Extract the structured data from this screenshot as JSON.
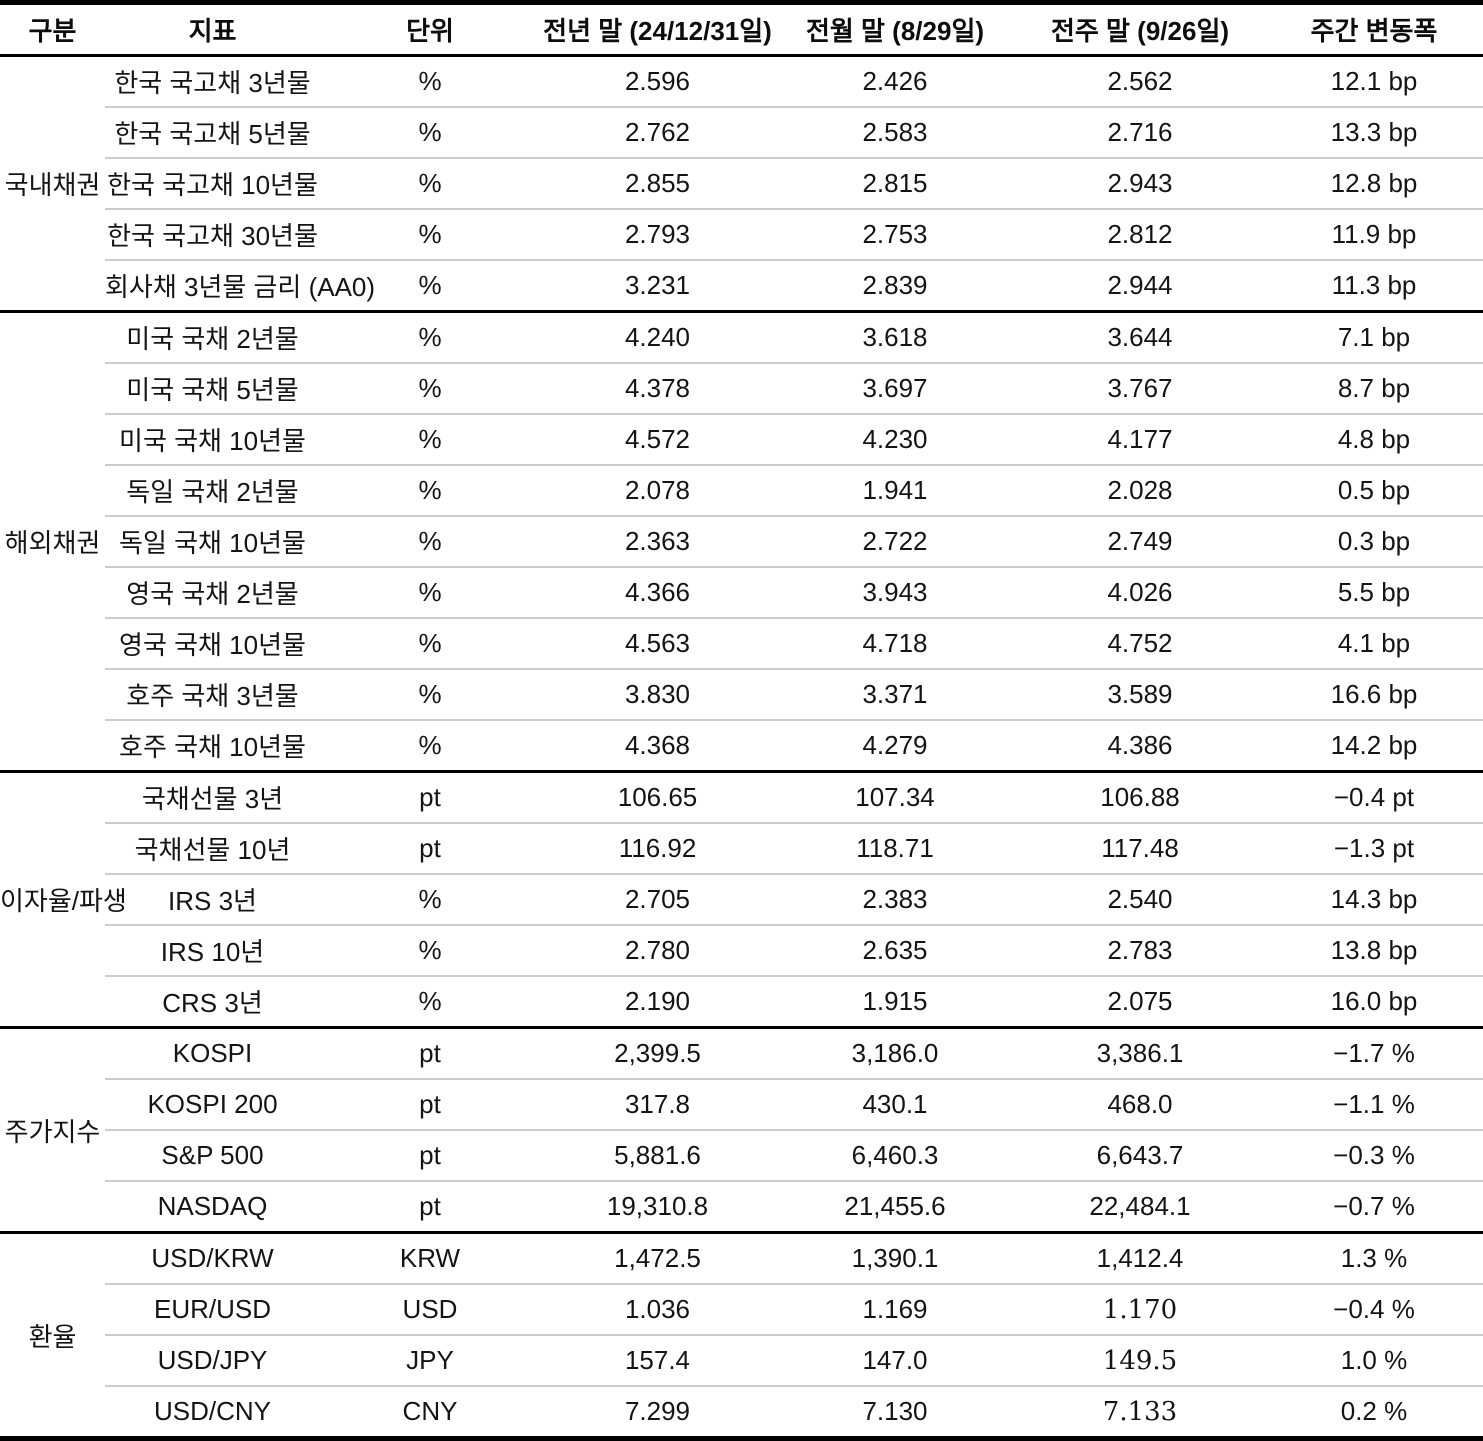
{
  "table": {
    "columns": [
      "구분",
      "지표",
      "단위",
      "전년 말 (24/12/31일)",
      "전월 말 (8/29일)",
      "전주 말 (9/26일)",
      "주간 변동폭"
    ],
    "sections": [
      {
        "category": "국내채권",
        "rows": [
          {
            "indicator": "한국 국고채 3년물",
            "unit": "%",
            "prev_year": "2.596",
            "prev_month": "2.426",
            "prev_week": "2.562",
            "weekly_change": "12.1 bp"
          },
          {
            "indicator": "한국 국고채 5년물",
            "unit": "%",
            "prev_year": "2.762",
            "prev_month": "2.583",
            "prev_week": "2.716",
            "weekly_change": "13.3 bp"
          },
          {
            "indicator": "한국 국고채 10년물",
            "unit": "%",
            "prev_year": "2.855",
            "prev_month": "2.815",
            "prev_week": "2.943",
            "weekly_change": "12.8 bp"
          },
          {
            "indicator": "한국 국고채 30년물",
            "unit": "%",
            "prev_year": "2.793",
            "prev_month": "2.753",
            "prev_week": "2.812",
            "weekly_change": "11.9 bp"
          },
          {
            "indicator": "회사채 3년물 금리 (AA0)",
            "unit": "%",
            "prev_year": "3.231",
            "prev_month": "2.839",
            "prev_week": "2.944",
            "weekly_change": "11.3 bp"
          }
        ]
      },
      {
        "category": "해외채권",
        "rows": [
          {
            "indicator": "미국 국채 2년물",
            "unit": "%",
            "prev_year": "4.240",
            "prev_month": "3.618",
            "prev_week": "3.644",
            "weekly_change": "7.1 bp"
          },
          {
            "indicator": "미국 국채 5년물",
            "unit": "%",
            "prev_year": "4.378",
            "prev_month": "3.697",
            "prev_week": "3.767",
            "weekly_change": "8.7 bp"
          },
          {
            "indicator": "미국 국채 10년물",
            "unit": "%",
            "prev_year": "4.572",
            "prev_month": "4.230",
            "prev_week": "4.177",
            "weekly_change": "4.8 bp"
          },
          {
            "indicator": "독일 국채 2년물",
            "unit": "%",
            "prev_year": "2.078",
            "prev_month": "1.941",
            "prev_week": "2.028",
            "weekly_change": "0.5 bp"
          },
          {
            "indicator": "독일 국채 10년물",
            "unit": "%",
            "prev_year": "2.363",
            "prev_month": "2.722",
            "prev_week": "2.749",
            "weekly_change": "0.3 bp"
          },
          {
            "indicator": "영국 국채 2년물",
            "unit": "%",
            "prev_year": "4.366",
            "prev_month": "3.943",
            "prev_week": "4.026",
            "weekly_change": "5.5 bp"
          },
          {
            "indicator": "영국 국채 10년물",
            "unit": "%",
            "prev_year": "4.563",
            "prev_month": "4.718",
            "prev_week": "4.752",
            "weekly_change": "4.1 bp"
          },
          {
            "indicator": "호주 국채 3년물",
            "unit": "%",
            "prev_year": "3.830",
            "prev_month": "3.371",
            "prev_week": "3.589",
            "weekly_change": "16.6 bp"
          },
          {
            "indicator": "호주 국채 10년물",
            "unit": "%",
            "prev_year": "4.368",
            "prev_month": "4.279",
            "prev_week": "4.386",
            "weekly_change": "14.2 bp"
          }
        ]
      },
      {
        "category": "이자율/파생",
        "rows": [
          {
            "indicator": "국채선물 3년",
            "unit": "pt",
            "prev_year": "106.65",
            "prev_month": "107.34",
            "prev_week": "106.88",
            "weekly_change": "−0.4 pt"
          },
          {
            "indicator": "국채선물 10년",
            "unit": "pt",
            "prev_year": "116.92",
            "prev_month": "118.71",
            "prev_week": "117.48",
            "weekly_change": "−1.3 pt"
          },
          {
            "indicator": "IRS 3년",
            "unit": "%",
            "prev_year": "2.705",
            "prev_month": "2.383",
            "prev_week": "2.540",
            "weekly_change": "14.3 bp"
          },
          {
            "indicator": "IRS 10년",
            "unit": "%",
            "prev_year": "2.780",
            "prev_month": "2.635",
            "prev_week": "2.783",
            "weekly_change": "13.8 bp"
          },
          {
            "indicator": "CRS 3년",
            "unit": "%",
            "prev_year": "2.190",
            "prev_month": "1.915",
            "prev_week": "2.075",
            "weekly_change": "16.0 bp"
          }
        ]
      },
      {
        "category": "주가지수",
        "rows": [
          {
            "indicator": "KOSPI",
            "unit": "pt",
            "prev_year": "2,399.5",
            "prev_month": "3,186.0",
            "prev_week": "3,386.1",
            "weekly_change": "−1.7 %"
          },
          {
            "indicator": "KOSPI 200",
            "unit": "pt",
            "prev_year": "317.8",
            "prev_month": "430.1",
            "prev_week": "468.0",
            "weekly_change": "−1.1 %"
          },
          {
            "indicator": "S&P 500",
            "unit": "pt",
            "prev_year": "5,881.6",
            "prev_month": "6,460.3",
            "prev_week": "6,643.7",
            "weekly_change": "−0.3 %"
          },
          {
            "indicator": "NASDAQ",
            "unit": "pt",
            "prev_year": "19,310.8",
            "prev_month": "21,455.6",
            "prev_week": "22,484.1",
            "weekly_change": "−0.7 %"
          }
        ]
      },
      {
        "category": "환율",
        "rows": [
          {
            "indicator": "USD/KRW",
            "unit": "KRW",
            "prev_year": "1,472.5",
            "prev_month": "1,390.1",
            "prev_week": "1,412.4",
            "weekly_change": "1.3 %"
          },
          {
            "indicator": "EUR/USD",
            "unit": "USD",
            "prev_year": "1.036",
            "prev_month": "1.169",
            "prev_week": "1.170",
            "prev_week_style": "alt",
            "weekly_change": "−0.4 %"
          },
          {
            "indicator": "USD/JPY",
            "unit": "JPY",
            "prev_year": "157.4",
            "prev_month": "147.0",
            "prev_week": "149.5",
            "prev_week_style": "alt",
            "weekly_change": "1.0 %"
          },
          {
            "indicator": "USD/CNY",
            "unit": "CNY",
            "prev_year": "7.299",
            "prev_month": "7.130",
            "prev_week": "7.133",
            "prev_week_style": "alt",
            "weekly_change": "0.2 %"
          }
        ]
      }
    ]
  }
}
